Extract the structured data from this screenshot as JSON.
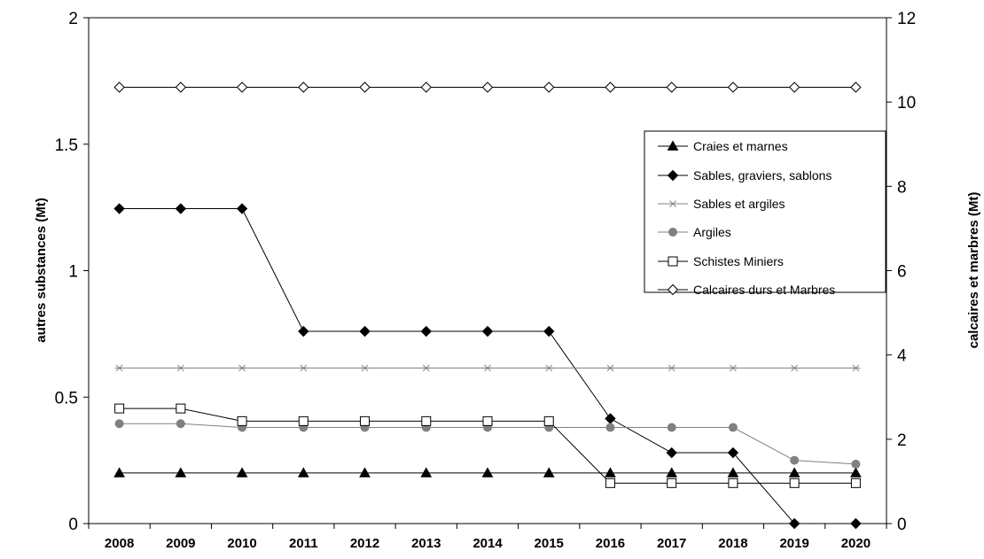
{
  "chart_data": {
    "type": "line",
    "categories": [
      "2008",
      "2009",
      "2010",
      "2011",
      "2012",
      "2013",
      "2014",
      "2015",
      "2016",
      "2017",
      "2018",
      "2019",
      "2020"
    ],
    "ylabel": "autres substances (Mt)",
    "y2label": "calcaires et marbres (Mt)",
    "ylim": [
      0,
      2
    ],
    "y2lim": [
      0,
      12
    ],
    "yticks": [
      "0",
      "0.5",
      "1",
      "1.5",
      "2"
    ],
    "y2ticks": [
      "0",
      "2",
      "4",
      "6",
      "8",
      "10",
      "12"
    ],
    "grid": false,
    "legend_position": "right",
    "series": [
      {
        "name": "Craies et marnes",
        "axis": "left",
        "color": "#000000",
        "marker": "triangle",
        "values": [
          0.2,
          0.2,
          0.2,
          0.2,
          0.2,
          0.2,
          0.2,
          0.2,
          0.2,
          0.2,
          0.2,
          0.2,
          0.2
        ]
      },
      {
        "name": "Sables, graviers, sablons",
        "axis": "left",
        "color": "#000000",
        "marker": "diamond",
        "values": [
          1.245,
          1.245,
          1.245,
          0.76,
          0.76,
          0.76,
          0.76,
          0.76,
          0.415,
          0.28,
          0.28,
          0.0,
          0.0
        ]
      },
      {
        "name": "Sables et argiles",
        "axis": "left",
        "color": "#808080",
        "marker": "asterisk",
        "values": [
          0.615,
          0.615,
          0.615,
          0.615,
          0.615,
          0.615,
          0.615,
          0.615,
          0.615,
          0.615,
          0.615,
          0.615,
          0.615
        ]
      },
      {
        "name": "Argiles",
        "axis": "left",
        "color": "#808080",
        "marker": "circle",
        "values": [
          0.395,
          0.395,
          0.38,
          0.38,
          0.38,
          0.38,
          0.38,
          0.38,
          0.38,
          0.38,
          0.38,
          0.25,
          0.235
        ]
      },
      {
        "name": "Schistes Miniers",
        "axis": "left",
        "color": "#000000",
        "marker": "square-open",
        "values": [
          0.455,
          0.455,
          0.405,
          0.405,
          0.405,
          0.405,
          0.405,
          0.405,
          0.16,
          0.16,
          0.16,
          0.16,
          0.16
        ]
      },
      {
        "name": "Calcaires durs et Marbres",
        "axis": "right",
        "color": "#000000",
        "marker": "diamond-open",
        "values": [
          10.35,
          10.35,
          10.35,
          10.35,
          10.35,
          10.35,
          10.35,
          10.35,
          10.35,
          10.35,
          10.35,
          10.35,
          10.35
        ]
      }
    ]
  }
}
